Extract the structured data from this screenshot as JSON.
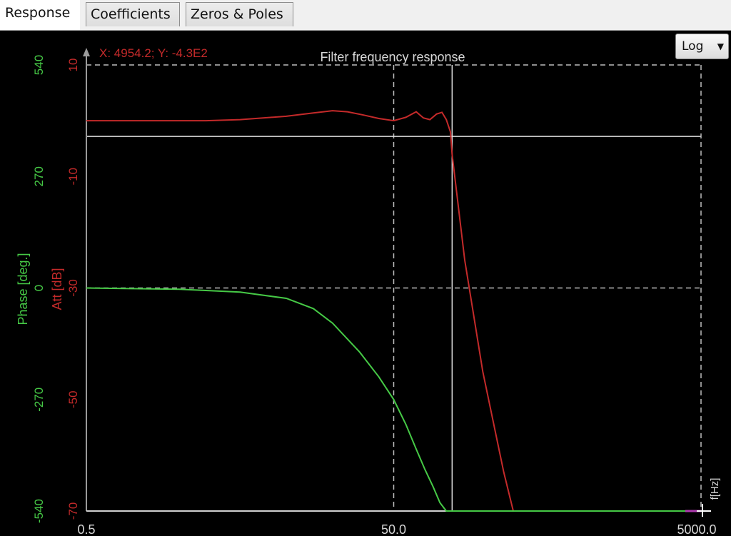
{
  "tabs": [
    {
      "label": "Response",
      "active": true
    },
    {
      "label": "Coefficients",
      "active": false
    },
    {
      "label": "Zeros & Poles",
      "active": false
    }
  ],
  "scale_button": {
    "label": "Log",
    "icon": "dropdown-arrow-icon"
  },
  "cursor_readout": "X: 4954.2; Y: -4.3E2",
  "colors": {
    "attenuation": "#c42a2a",
    "phase": "#46c946",
    "grid": "#bdbdbd",
    "background": "#000000"
  },
  "chart_data": {
    "type": "line",
    "title": "Filter frequency response",
    "xlabel": "f[Hz]",
    "xscale": "log",
    "xlim": [
      0.5,
      5000
    ],
    "x_ticks": [
      "0.5",
      "50.0",
      "5000.0"
    ],
    "y_left_att": {
      "label": "Att [dB]",
      "ticks": [
        "10",
        "-10",
        "-30",
        "-50",
        "-70"
      ],
      "lim": [
        -70,
        10
      ]
    },
    "y_left_phase": {
      "label": "Phase [deg.]",
      "ticks": [
        "540",
        "270",
        "0",
        "-270",
        "-540"
      ],
      "lim": [
        -540,
        540
      ]
    },
    "grid": "dashed",
    "cursor": {
      "x": 120,
      "y_att": 0
    },
    "series": [
      {
        "name": "Att [dB]",
        "axis": "att",
        "points": [
          [
            0.5,
            0
          ],
          [
            1,
            0
          ],
          [
            3,
            0
          ],
          [
            5,
            0.2
          ],
          [
            10,
            0.8
          ],
          [
            15,
            1.4
          ],
          [
            20,
            1.8
          ],
          [
            25,
            1.6
          ],
          [
            32,
            1.0
          ],
          [
            40,
            0.4
          ],
          [
            50,
            0
          ],
          [
            60,
            0.6
          ],
          [
            70,
            1.6
          ],
          [
            78,
            0.5
          ],
          [
            86,
            0.2
          ],
          [
            95,
            1.2
          ],
          [
            103,
            1.5
          ],
          [
            110,
            0.2
          ],
          [
            117,
            -2
          ],
          [
            120,
            -6
          ],
          [
            145,
            -25
          ],
          [
            190,
            -45
          ],
          [
            260,
            -63
          ],
          [
            300,
            -70
          ],
          [
            5000,
            -70
          ]
        ]
      },
      {
        "name": "Phase [deg.]",
        "axis": "phase",
        "points": [
          [
            0.5,
            0
          ],
          [
            2,
            -3
          ],
          [
            5,
            -10
          ],
          [
            10,
            -25
          ],
          [
            15,
            -50
          ],
          [
            20,
            -85
          ],
          [
            30,
            -155
          ],
          [
            40,
            -215
          ],
          [
            50,
            -270
          ],
          [
            60,
            -330
          ],
          [
            70,
            -390
          ],
          [
            80,
            -440
          ],
          [
            90,
            -480
          ],
          [
            100,
            -520
          ],
          [
            110,
            -560
          ],
          [
            118,
            -610
          ],
          [
            122,
            -680
          ],
          [
            130,
            -720
          ],
          [
            150,
            -750
          ],
          [
            200,
            -770
          ],
          [
            300,
            -785
          ],
          [
            500,
            -795
          ],
          [
            1000,
            -805
          ],
          [
            2000,
            -808
          ],
          [
            5000,
            -810
          ]
        ]
      }
    ]
  }
}
